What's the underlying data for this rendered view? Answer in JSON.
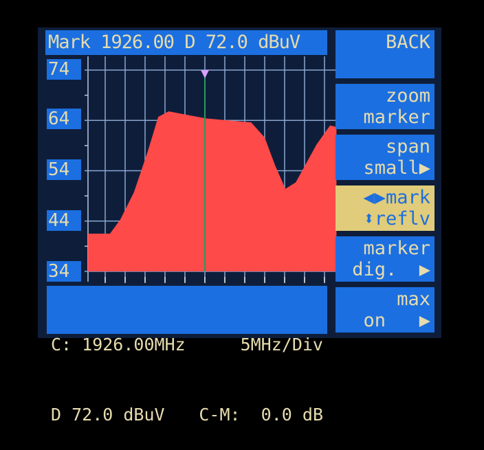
{
  "header": {
    "marker_readout": "Mark 1926.00 D 72.0 dBuV"
  },
  "y_axis": {
    "labels": [
      "74",
      "64",
      "54",
      "44",
      "34"
    ],
    "unit": "dBuV"
  },
  "buttons": [
    {
      "line1": "BACK",
      "line2": ""
    },
    {
      "line1": "zoom",
      "line2": "marker"
    },
    {
      "line1": "span",
      "line2": "small▶"
    },
    {
      "line1": "◀▶mark",
      "line2": "⬍reflv",
      "selected": true
    },
    {
      "line1": "marker",
      "line2": "dig.  ▶"
    },
    {
      "line1": "max",
      "line2": "on   ▶"
    }
  ],
  "status": {
    "center": "C: 1926.00MHz",
    "span_div": "5MHz/Div",
    "level": "D 72.0 dBuV",
    "c_minus_m": "C-M:  0.0 dB"
  },
  "colors": {
    "panel": "#1c6fe0",
    "text": "#e6dcae",
    "selected": "#e0cc7a",
    "trace": "#ff4a4a",
    "marker_line": "#2a9a5a",
    "marker_flag": "#d8a0ff"
  },
  "chart_data": {
    "type": "area",
    "xlabel": "",
    "ylabel": "",
    "center_mhz": 1926.0,
    "span_per_div_mhz": 5,
    "ylim": [
      34,
      74
    ],
    "marker_mhz": 1926.0,
    "grid": true,
    "points": [
      [
        1896.7,
        41.5
      ],
      [
        1902.2,
        41.5
      ],
      [
        1904.8,
        44.3
      ],
      [
        1908.2,
        49.7
      ],
      [
        1911.7,
        57.9
      ],
      [
        1914.3,
        64.7
      ],
      [
        1916.9,
        65.8
      ],
      [
        1926.3,
        64.4
      ],
      [
        1937.6,
        63.6
      ],
      [
        1941.0,
        60.6
      ],
      [
        1943.6,
        55.1
      ],
      [
        1946.2,
        50.4
      ],
      [
        1948.8,
        51.7
      ],
      [
        1954.0,
        59.2
      ],
      [
        1957.4,
        63.0
      ],
      [
        1959.0,
        62.7
      ]
    ]
  }
}
